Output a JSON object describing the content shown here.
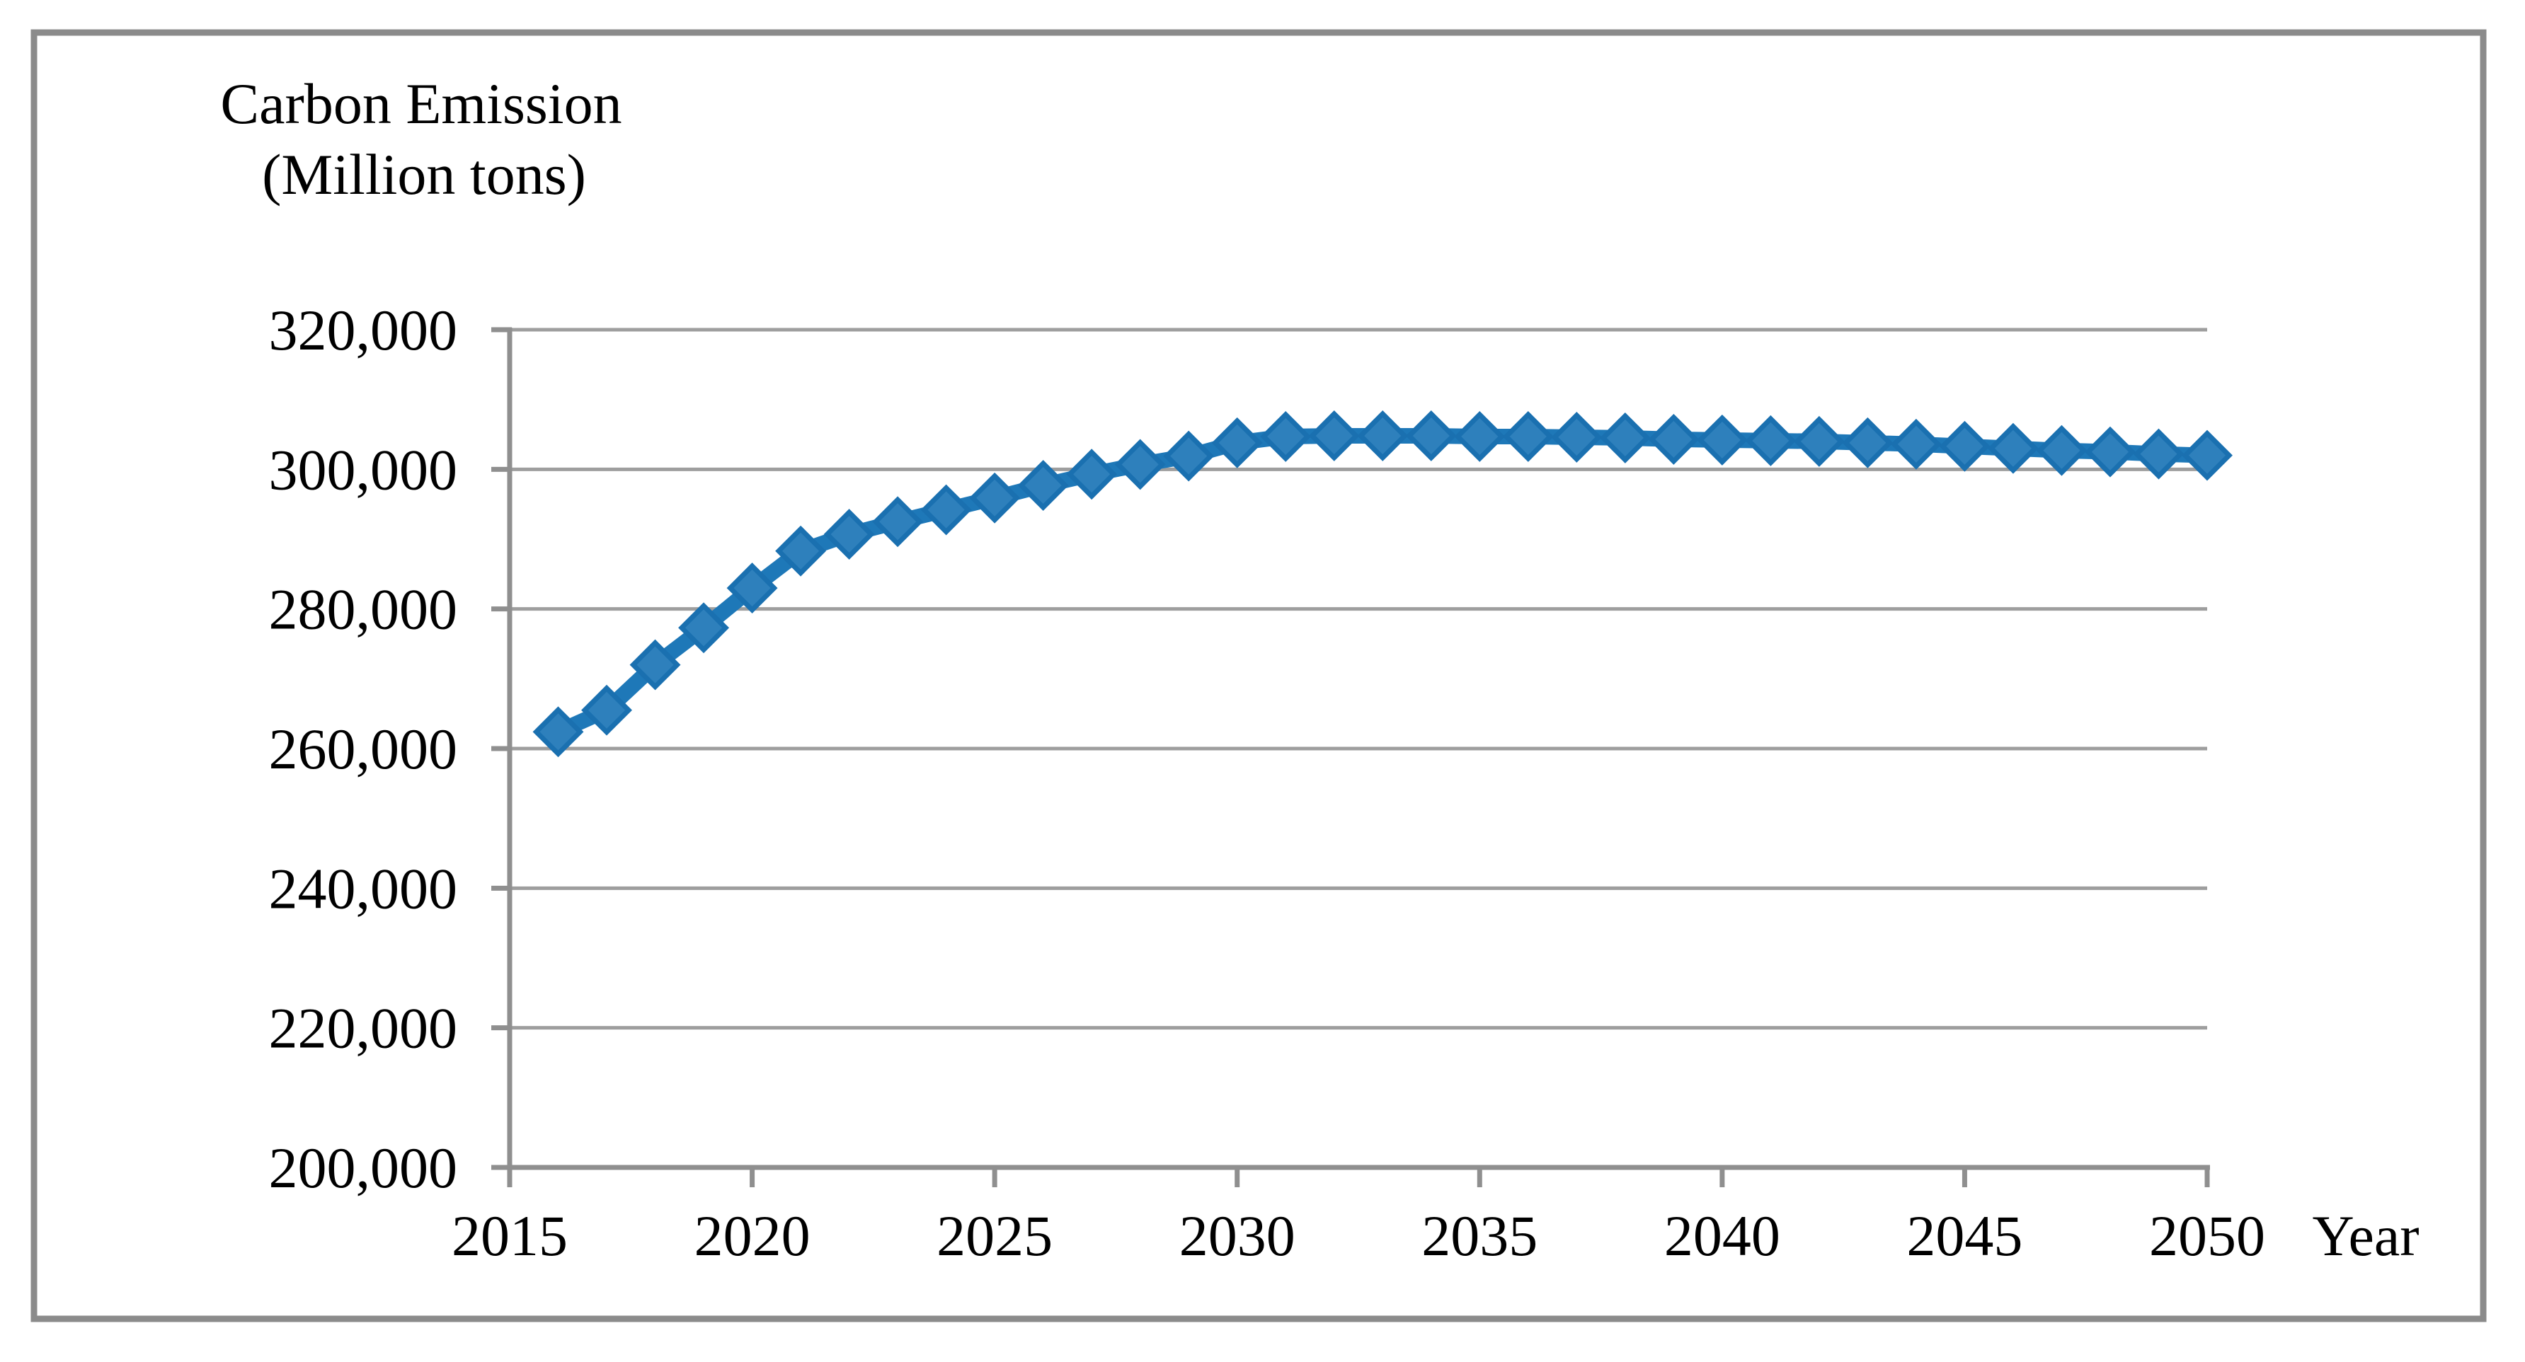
{
  "figure": {
    "background": "#FFFFFF",
    "border_color": "#8B8B8B"
  },
  "chart_data": {
    "type": "line",
    "title": "Carbon Emission (Million tons)",
    "title_line1": "Carbon Emission",
    "title_line2": "(Million tons)",
    "xlabel": "Year",
    "ylabel": "Carbon Emission (Million tons)",
    "grid": true,
    "legend_position": "none",
    "xlim": [
      2015,
      2050
    ],
    "ylim": [
      200000,
      320000
    ],
    "x_ticks": [
      2015,
      2020,
      2025,
      2030,
      2035,
      2040,
      2045,
      2050
    ],
    "y_ticks": [
      {
        "value": 320000,
        "label": "320,000"
      },
      {
        "value": 300000,
        "label": "300,000"
      },
      {
        "value": 280000,
        "label": "280,000"
      },
      {
        "value": 260000,
        "label": "260,000"
      },
      {
        "value": 240000,
        "label": "240,000"
      },
      {
        "value": 220000,
        "label": "220,000"
      },
      {
        "value": 200000,
        "label": "200,000"
      }
    ],
    "x": [
      2016,
      2017,
      2018,
      2019,
      2020,
      2021,
      2022,
      2023,
      2024,
      2025,
      2026,
      2027,
      2028,
      2029,
      2030,
      2031,
      2032,
      2033,
      2034,
      2035,
      2036,
      2037,
      2038,
      2039,
      2040,
      2041,
      2042,
      2043,
      2044,
      2045,
      2046,
      2047,
      2048,
      2049,
      2050
    ],
    "values": [
      262400,
      265500,
      272000,
      277300,
      283000,
      288300,
      290700,
      292500,
      294200,
      295900,
      297700,
      299300,
      300700,
      301900,
      303800,
      304700,
      304800,
      304800,
      304800,
      304700,
      304700,
      304600,
      304500,
      304300,
      304200,
      304100,
      304000,
      303800,
      303600,
      303300,
      303000,
      302700,
      302500,
      302200,
      302000
    ],
    "marker": "diamond",
    "line_color": "#1E78B8",
    "marker_fill": "#2E80BC",
    "marker_stroke": "#1A70B0",
    "grid_color": "#9E9E9E",
    "axis_color": "#8F8F8F",
    "text_color": "#000000"
  }
}
